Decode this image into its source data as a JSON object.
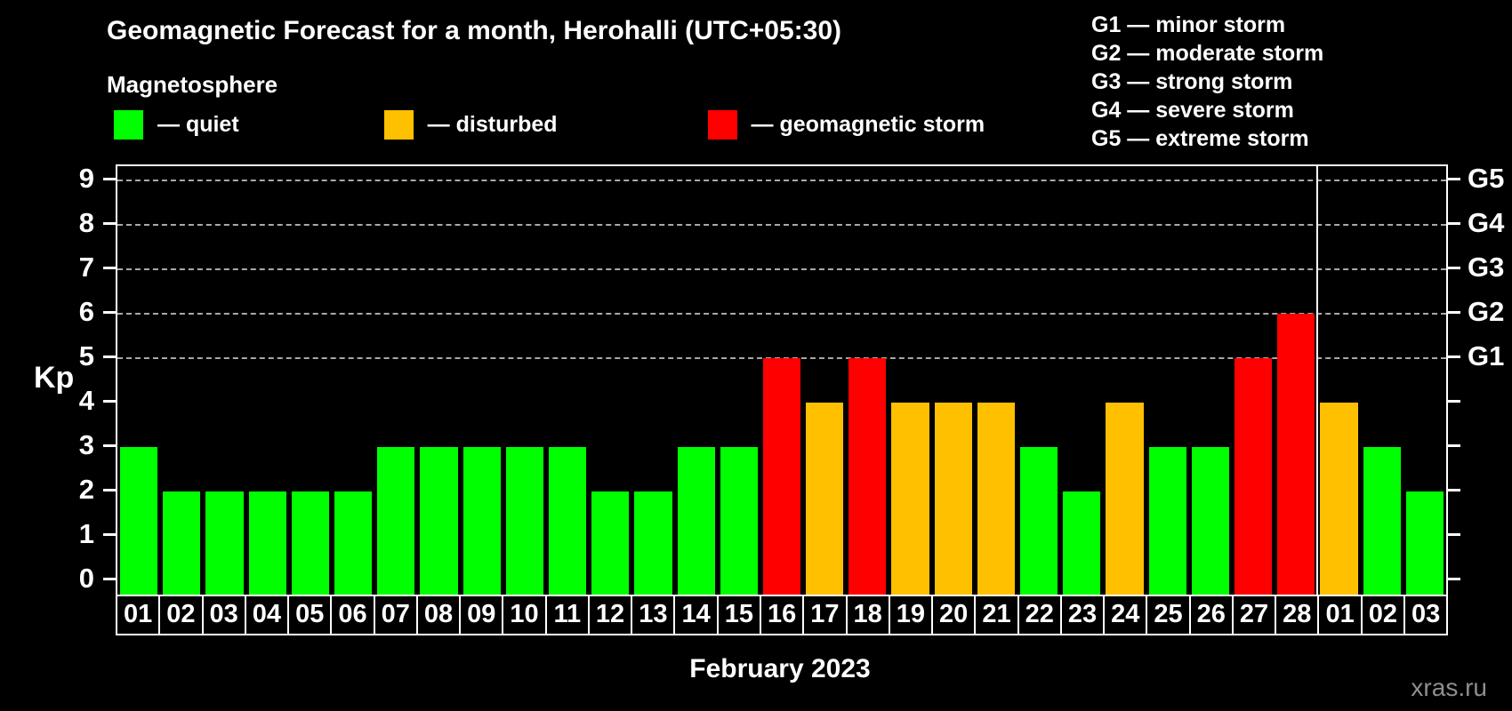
{
  "header": {
    "title": "Geomagnetic Forecast for a month, Herohalli (UTC+05:30)",
    "subtitle": "Magnetosphere"
  },
  "kp_legend": [
    {
      "label": "— quiet",
      "status": "quiet",
      "color": "#00ff00"
    },
    {
      "label": "— disturbed",
      "status": "disturbed",
      "color": "#ffc000"
    },
    {
      "label": "— geomagnetic storm",
      "status": "storm",
      "color": "#ff0000"
    }
  ],
  "g_legend": [
    "G1 — minor storm",
    "G2 — moderate storm",
    "G3 — strong storm",
    "G4 — severe storm",
    "G5 — extreme storm"
  ],
  "chart_data": {
    "type": "bar",
    "title": "Geomagnetic Forecast for a month, Herohalli (UTC+05:30)",
    "subtitle": "Magnetosphere",
    "xlabel": "February 2023",
    "ylabel": "Kp",
    "ylim": [
      0,
      9
    ],
    "yticks": [
      0,
      1,
      2,
      3,
      4,
      5,
      6,
      7,
      8,
      9
    ],
    "gridlines_at": [
      5,
      6,
      7,
      8,
      9
    ],
    "grid": "dashed horizontal at G-storm levels only",
    "legend_position": "top",
    "right_axis": {
      "labels": [
        "G1",
        "G2",
        "G3",
        "G4",
        "G5"
      ],
      "positions": [
        5,
        6,
        7,
        8,
        9
      ]
    },
    "categories": [
      "01",
      "02",
      "03",
      "04",
      "05",
      "06",
      "07",
      "08",
      "09",
      "10",
      "11",
      "12",
      "13",
      "14",
      "15",
      "16",
      "17",
      "18",
      "19",
      "20",
      "21",
      "22",
      "23",
      "24",
      "25",
      "26",
      "27",
      "28",
      "01",
      "02",
      "03"
    ],
    "values": [
      3,
      2,
      2,
      2,
      2,
      2,
      3,
      3,
      3,
      3,
      3,
      2,
      2,
      3,
      3,
      5,
      4,
      5,
      4,
      4,
      4,
      3,
      2,
      4,
      3,
      3,
      5,
      6,
      4,
      3,
      2
    ],
    "statuses": [
      "quiet",
      "quiet",
      "quiet",
      "quiet",
      "quiet",
      "quiet",
      "quiet",
      "quiet",
      "quiet",
      "quiet",
      "quiet",
      "quiet",
      "quiet",
      "quiet",
      "quiet",
      "storm",
      "disturbed",
      "storm",
      "disturbed",
      "disturbed",
      "disturbed",
      "quiet",
      "quiet",
      "disturbed",
      "quiet",
      "quiet",
      "storm",
      "storm",
      "disturbed",
      "quiet",
      "quiet"
    ],
    "month_separator_after_category_index": 27,
    "colors": {
      "quiet": "#00ff00",
      "disturbed": "#ffc000",
      "storm": "#ff0000"
    }
  },
  "footer": {
    "watermark": "xras.ru"
  }
}
